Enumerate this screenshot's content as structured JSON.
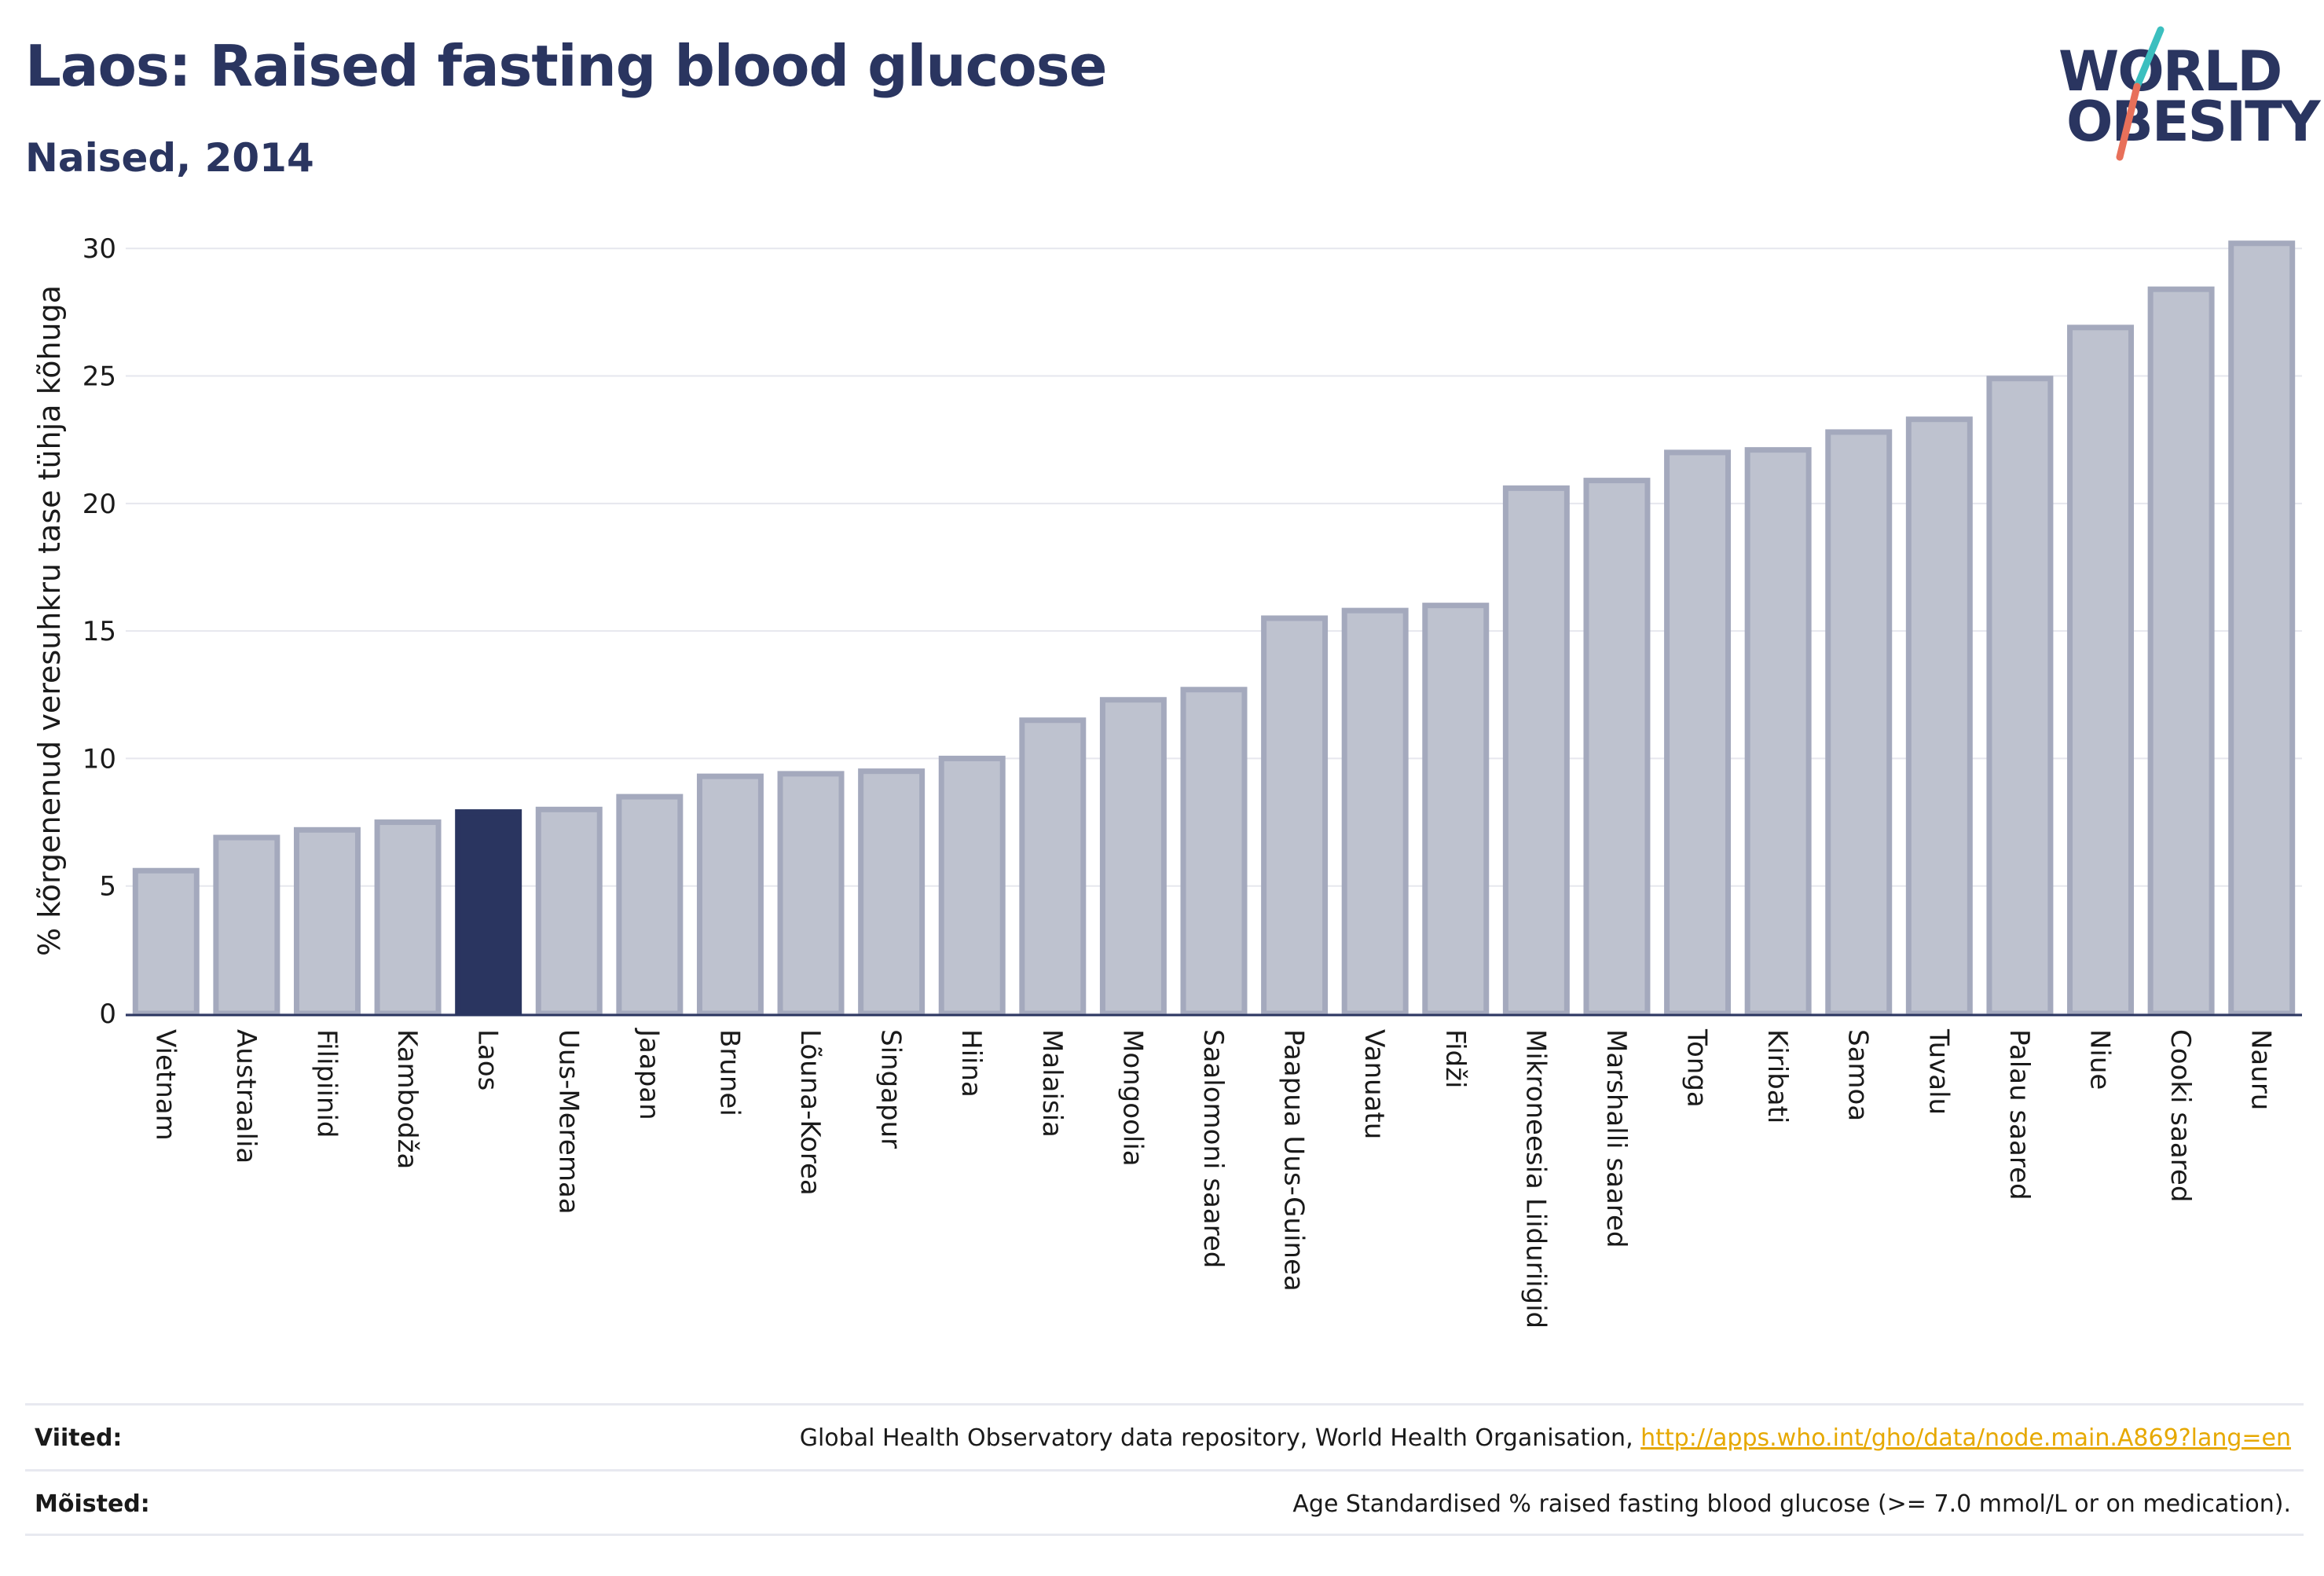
{
  "header": {
    "title": "Laos: Raised fasting blood glucose",
    "subtitle": "Naised, 2014"
  },
  "logo": {
    "line1": "WORLD",
    "line2": "OBESITY",
    "accent_teal": "#3cbfbf",
    "accent_red": "#e8705a"
  },
  "colors": {
    "bar_default": "#bec2cf",
    "bar_default_stroke": "#a4a9bd",
    "bar_highlight": "#2a3560",
    "axis": "#2a3560",
    "grid": "#e6e7ee"
  },
  "chart_data": {
    "type": "bar",
    "title": "Laos: Raised fasting blood glucose",
    "subtitle": "Naised, 2014",
    "ylabel": "% kõrgenenud veresuhkru tase tühja kõhuga",
    "xlabel": "",
    "ylim": [
      0,
      30.5
    ],
    "yticks": [
      0,
      5,
      10,
      15,
      20,
      25,
      30
    ],
    "grid": true,
    "highlight": "Laos",
    "categories": [
      "Vietnam",
      "Austraalia",
      "Filipiinid",
      "Kambodža",
      "Laos",
      "Uus-Meremaa",
      "Jaapan",
      "Brunei",
      "Lõuna-Korea",
      "Singapur",
      "Hiina",
      "Malaisia",
      "Mongoolia",
      "Saalomoni saared",
      "Paapua Uus-Guinea",
      "Vanuatu",
      "Fidži",
      "Mikroneesia Liiduriigid",
      "Marshalli saared",
      "Tonga",
      "Kiribati",
      "Samoa",
      "Tuvalu",
      "Palau saared",
      "Niue",
      "Cooki saared",
      "Nauru"
    ],
    "values": [
      5.6,
      6.9,
      7.2,
      7.5,
      7.9,
      8.0,
      8.5,
      9.3,
      9.4,
      9.5,
      10.0,
      11.5,
      12.3,
      12.7,
      15.5,
      15.8,
      16.0,
      20.6,
      20.9,
      22.0,
      22.1,
      22.8,
      23.3,
      24.9,
      26.9,
      28.4,
      30.2
    ]
  },
  "footer": {
    "sources_label": "Viited:",
    "sources_text": "Global Health Observatory data repository, World Health Organisation, ",
    "sources_link": "http://apps.who.int/gho/data/node.main.A869?lang=en",
    "definitions_label": "Mõisted:",
    "definitions_text": "Age Standardised % raised fasting blood glucose (>= 7.0 mmol/L or on medication)."
  }
}
